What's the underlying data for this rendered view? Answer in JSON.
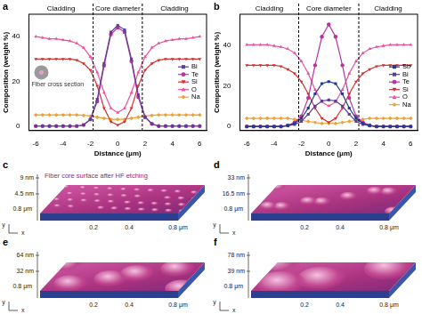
{
  "chart_data": [
    {
      "type": "line",
      "panel_label": "a",
      "x_label": "Distance (μm)",
      "y_label": "Composition (weight %)",
      "x": [
        -6,
        -5.5,
        -5,
        -4.5,
        -4,
        -3.5,
        -3,
        -2.5,
        -2,
        -1.5,
        -1,
        -0.5,
        0,
        0.5,
        1,
        1.5,
        2,
        2.5,
        3,
        3.5,
        4,
        4.5,
        5,
        5.5,
        6
      ],
      "xlim": [
        -6.5,
        6.5
      ],
      "xticks": [
        -6,
        -4,
        -2,
        0,
        2,
        4,
        6
      ],
      "ylim": [
        -2,
        50
      ],
      "yticks": [
        0,
        20,
        40
      ],
      "grid": false,
      "legend": "right",
      "core_bounds": [
        -1.8,
        1.8
      ],
      "region_labels": {
        "left": "Cladding",
        "core": "Core diameter",
        "right": "Cladding"
      },
      "inset_label": "Fiber cross section",
      "series": [
        {
          "name": "Bi",
          "color": "#5e3c99",
          "marker": "square",
          "values": [
            0,
            0,
            0,
            0,
            0,
            0,
            0,
            0.5,
            3,
            12,
            28,
            42,
            45,
            43,
            30,
            14,
            4,
            1,
            0,
            0,
            0,
            0,
            0,
            0,
            0
          ]
        },
        {
          "name": "Te",
          "color": "#b8339e",
          "marker": "circle",
          "values": [
            0,
            0,
            0,
            0,
            0,
            0,
            0,
            0.5,
            3,
            11,
            27,
            41,
            44,
            42,
            29,
            13,
            4,
            1,
            0,
            0,
            0,
            0,
            0,
            0,
            0
          ]
        },
        {
          "name": "Si",
          "color": "#d62f2f",
          "marker": "triangle_down",
          "values": [
            30,
            30,
            30,
            30,
            30,
            30,
            29.5,
            28,
            25,
            18,
            8,
            2,
            0.5,
            2,
            8,
            18,
            25,
            28,
            29.5,
            30,
            30,
            30,
            30,
            30,
            30
          ]
        },
        {
          "name": "O",
          "color": "#ec4f9c",
          "marker": "triangle_up",
          "values": [
            40,
            39.5,
            39,
            39,
            38.5,
            38,
            37,
            35,
            31,
            24,
            15,
            8,
            6,
            8,
            15,
            24,
            31,
            35,
            37,
            38,
            38.5,
            39,
            39,
            39.5,
            40
          ]
        },
        {
          "name": "Na",
          "color": "#f0a030",
          "marker": "diamond",
          "values": [
            5,
            5,
            5,
            5,
            5,
            5,
            5,
            4.8,
            4.5,
            4,
            3.5,
            3,
            3,
            3,
            3.5,
            4,
            4.5,
            4.8,
            5,
            5,
            5,
            5,
            5,
            5,
            5
          ]
        }
      ]
    },
    {
      "type": "line",
      "panel_label": "b",
      "x_label": "Distance (μm)",
      "y_label": "Composition (weight %)",
      "x": [
        -6,
        -5.5,
        -5,
        -4.5,
        -4,
        -3.5,
        -3,
        -2.5,
        -2,
        -1.5,
        -1,
        -0.5,
        0,
        0.5,
        1,
        1.5,
        2,
        2.5,
        3,
        3.5,
        4,
        4.5,
        5,
        5.5,
        6
      ],
      "xlim": [
        -6.5,
        6.5
      ],
      "xticks": [
        -6,
        -4,
        -2,
        0,
        2,
        4,
        6
      ],
      "ylim": [
        -2,
        55
      ],
      "yticks": [
        0,
        20,
        40
      ],
      "grid": false,
      "legend": "right",
      "core_bounds": [
        -2.2,
        2.2
      ],
      "region_labels": {
        "left": "Cladding",
        "core": "Core diameter",
        "right": "Cladding"
      },
      "series": [
        {
          "name": "Sb",
          "color": "#1f3b8f",
          "marker": "square",
          "values": [
            0,
            0,
            0,
            0,
            0,
            0,
            0.5,
            1.5,
            4,
            9,
            16,
            21,
            22,
            21,
            16,
            9,
            4,
            1.5,
            0.5,
            0,
            0,
            0,
            0,
            0,
            0
          ]
        },
        {
          "name": "Bi",
          "color": "#5e3c99",
          "marker": "square",
          "values": [
            0,
            0,
            0,
            0,
            0,
            0,
            0.3,
            1,
            2.5,
            6,
            10,
            12.5,
            13,
            12.5,
            10,
            6,
            2.5,
            1,
            0.3,
            0,
            0,
            0,
            0,
            0,
            0
          ]
        },
        {
          "name": "Te",
          "color": "#b8339e",
          "marker": "circle",
          "values": [
            0,
            0,
            0,
            0,
            0,
            0,
            0.5,
            2,
            5,
            14,
            30,
            44,
            50,
            44,
            30,
            14,
            5,
            2,
            0.5,
            0,
            0,
            0,
            0,
            0,
            0
          ]
        },
        {
          "name": "Si",
          "color": "#d62f2f",
          "marker": "triangle_down",
          "values": [
            30,
            30,
            30,
            30,
            30,
            29.5,
            28,
            26,
            22,
            16,
            9,
            4,
            2,
            4,
            9,
            16,
            22,
            26,
            28,
            29.5,
            30,
            30,
            30,
            30,
            30
          ]
        },
        {
          "name": "O",
          "color": "#ec4f9c",
          "marker": "triangle_up",
          "values": [
            40,
            40,
            40,
            40,
            39.5,
            39,
            38,
            36,
            32,
            26,
            18,
            12,
            10,
            12,
            18,
            26,
            32,
            36,
            38,
            39,
            39.5,
            40,
            40,
            40,
            40
          ]
        },
        {
          "name": "Na",
          "color": "#f0a030",
          "marker": "diamond",
          "values": [
            4,
            4,
            4,
            4,
            4,
            4,
            4,
            3.5,
            3,
            2.5,
            2,
            1.5,
            1.5,
            1.5,
            2,
            2.5,
            3,
            3.5,
            4,
            4,
            4,
            4,
            4,
            4,
            4
          ]
        }
      ]
    }
  ],
  "surface_images": [
    {
      "panel_label": "c",
      "z_ticks": [
        "9 nm",
        "4.5 nm"
      ],
      "x_ticks": [
        "0.2",
        "0.4",
        "0.8 μm"
      ],
      "y_ticks": [
        "0.8 μm"
      ],
      "axis_names": [
        "y",
        "x"
      ],
      "caption": "Fiber core surface after HF etching"
    },
    {
      "panel_label": "d",
      "z_ticks": [
        "33 nm",
        "16.5 nm"
      ],
      "x_ticks": [
        "0.2",
        "0.4",
        "0.8 μm"
      ],
      "y_ticks": [
        "0.8 μm"
      ],
      "axis_names": [
        "y",
        "x"
      ]
    },
    {
      "panel_label": "e",
      "z_ticks": [
        "64 nm",
        "32 nm"
      ],
      "x_ticks": [
        "0.2",
        "0.4",
        "0.8 μm"
      ],
      "y_ticks": [
        "0.8 μm"
      ],
      "axis_names": [
        "y",
        "x"
      ]
    },
    {
      "panel_label": "f",
      "z_ticks": [
        "78 nm",
        "39 nm"
      ],
      "x_ticks": [
        "0.2",
        "0.4",
        "0.8 μm"
      ],
      "y_ticks": [
        "0.8 μm"
      ],
      "axis_names": [
        "y",
        "x"
      ]
    }
  ]
}
